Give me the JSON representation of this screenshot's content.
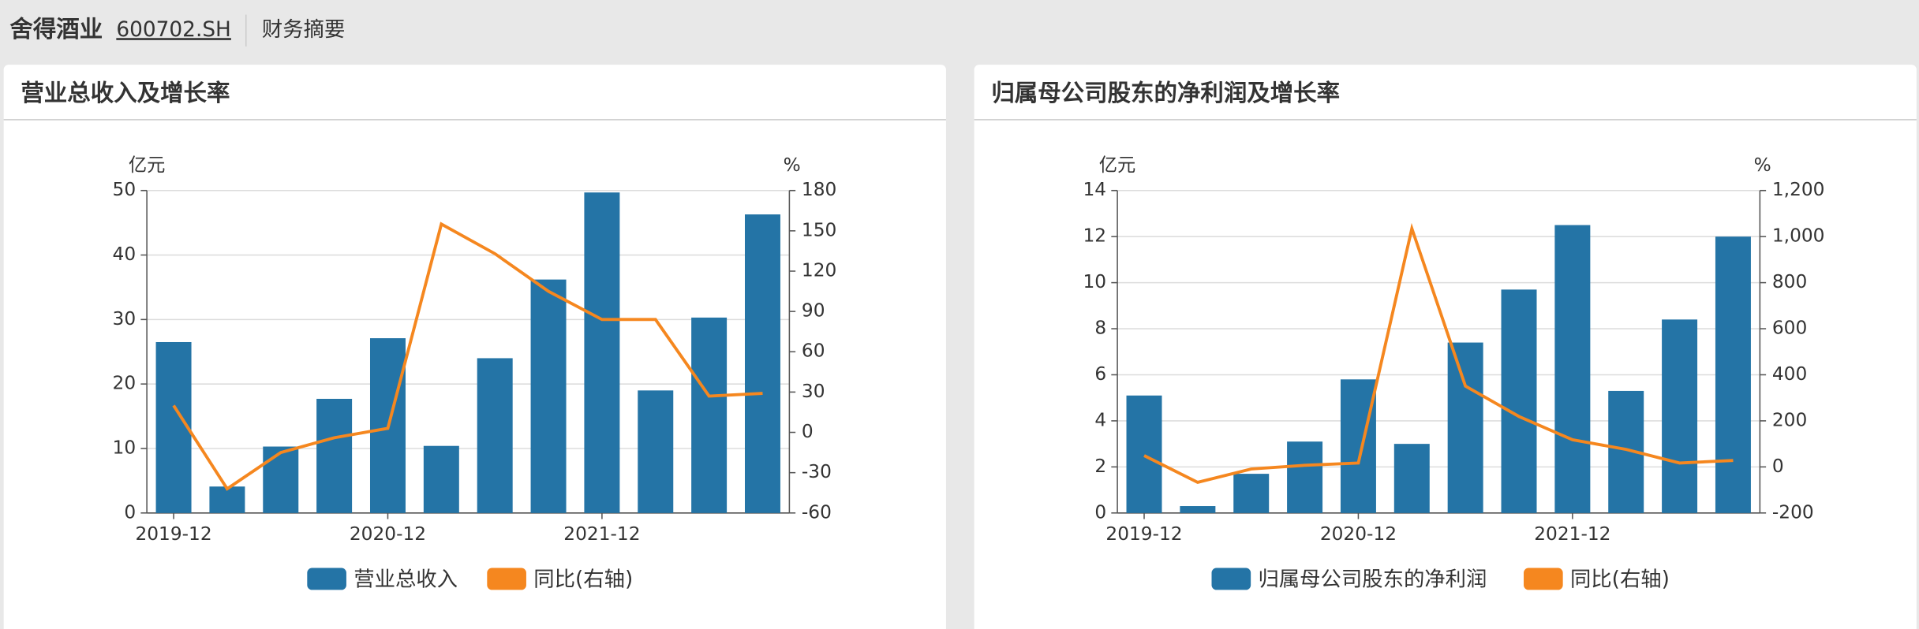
{
  "header": {
    "name": "舍得酒业",
    "code": "600702.SH",
    "section": "财务摘要"
  },
  "chart_data": [
    {
      "type": "bar-line",
      "title": "营业总收入及增长率",
      "y_label": "亿元",
      "y2_label": "%",
      "categories": [
        "2019-12",
        null,
        null,
        null,
        "2020-12",
        null,
        null,
        null,
        "2021-12",
        null,
        null,
        null
      ],
      "series": [
        {
          "name": "营业总收入",
          "color": "#2474a6",
          "values": [
            26.5,
            4.1,
            10.3,
            17.7,
            27.1,
            10.4,
            24.0,
            36.2,
            49.7,
            19.0,
            30.3,
            46.3
          ]
        },
        {
          "name": "同比(右轴)",
          "color": "#f5871f",
          "axis": "y2",
          "values": [
            20,
            -42,
            -15,
            -4,
            3,
            155,
            133,
            105,
            84,
            84,
            27,
            29
          ]
        }
      ],
      "ylim": [
        0,
        50
      ],
      "yticks": [
        0,
        10,
        20,
        30,
        40,
        50
      ],
      "y2lim": [
        -60,
        180
      ],
      "y2ticks": [
        -60,
        -30,
        0,
        30,
        60,
        90,
        120,
        150,
        180
      ],
      "grid": true
    },
    {
      "type": "bar-line",
      "title": "归属母公司股东的净利润及增长率",
      "y_label": "亿元",
      "y2_label": "%",
      "categories": [
        "2019-12",
        null,
        null,
        null,
        "2020-12",
        null,
        null,
        null,
        "2021-12",
        null,
        null,
        null
      ],
      "series": [
        {
          "name": "归属母公司股东的净利润",
          "color": "#2474a6",
          "values": [
            5.1,
            0.3,
            1.7,
            3.1,
            5.8,
            3.0,
            7.4,
            9.7,
            12.5,
            5.3,
            8.4,
            12.0
          ]
        },
        {
          "name": "同比(右轴)",
          "color": "#f5871f",
          "axis": "y2",
          "values": [
            49,
            -67,
            -9,
            7,
            17,
            1035,
            351,
            219,
            118,
            76,
            17,
            28
          ]
        }
      ],
      "ylim": [
        0,
        14
      ],
      "yticks": [
        0,
        2,
        4,
        6,
        8,
        10,
        12,
        14
      ],
      "y2lim": [
        -200,
        1200
      ],
      "y2ticks": [
        -200,
        0,
        200,
        400,
        600,
        800,
        {
          "value": 1000,
          "label": "1,000"
        },
        {
          "value": 1200,
          "label": "1,200"
        }
      ],
      "grid": true
    }
  ]
}
